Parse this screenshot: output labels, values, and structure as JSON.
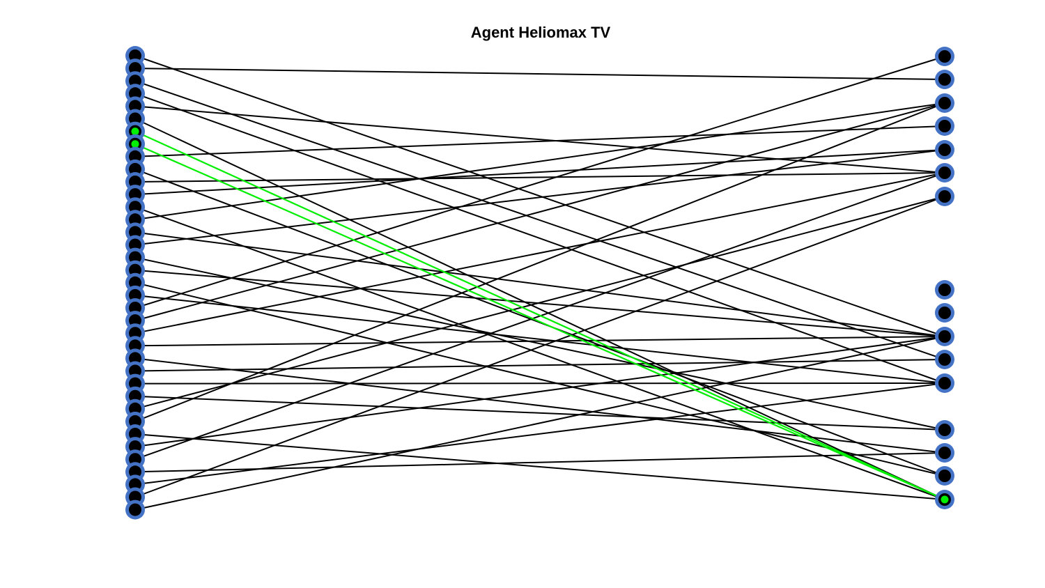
{
  "title": "Agent Heliomax TV",
  "colors": {
    "edge": "#000000",
    "highlight": "#00ee00",
    "node_ring": "#4472c4",
    "node_fill": "#000000",
    "background": "#ffffff"
  },
  "graph": {
    "left_node_count": 37,
    "right_node_count": 19,
    "edges": [
      [
        0,
        9
      ],
      [
        1,
        1
      ],
      [
        2,
        10
      ],
      [
        3,
        11
      ],
      [
        4,
        5
      ],
      [
        5,
        15
      ],
      [
        6,
        18,
        "highlight"
      ],
      [
        7,
        18,
        "highlight"
      ],
      [
        8,
        3
      ],
      [
        9,
        14
      ],
      [
        10,
        5
      ],
      [
        11,
        4
      ],
      [
        12,
        15
      ],
      [
        13,
        2
      ],
      [
        14,
        9
      ],
      [
        15,
        4
      ],
      [
        16,
        12
      ],
      [
        17,
        9
      ],
      [
        18,
        14
      ],
      [
        19,
        11
      ],
      [
        20,
        0
      ],
      [
        21,
        2
      ],
      [
        22,
        5
      ],
      [
        23,
        9
      ],
      [
        24,
        13
      ],
      [
        25,
        10
      ],
      [
        26,
        11
      ],
      [
        27,
        12
      ],
      [
        28,
        6
      ],
      [
        29,
        2
      ],
      [
        30,
        15
      ],
      [
        31,
        9
      ],
      [
        32,
        5
      ],
      [
        33,
        13
      ],
      [
        34,
        11
      ],
      [
        35,
        6
      ],
      [
        36,
        9
      ]
    ],
    "highlighted_nodes": {
      "left": [
        6,
        7
      ],
      "right": [
        18
      ]
    }
  }
}
